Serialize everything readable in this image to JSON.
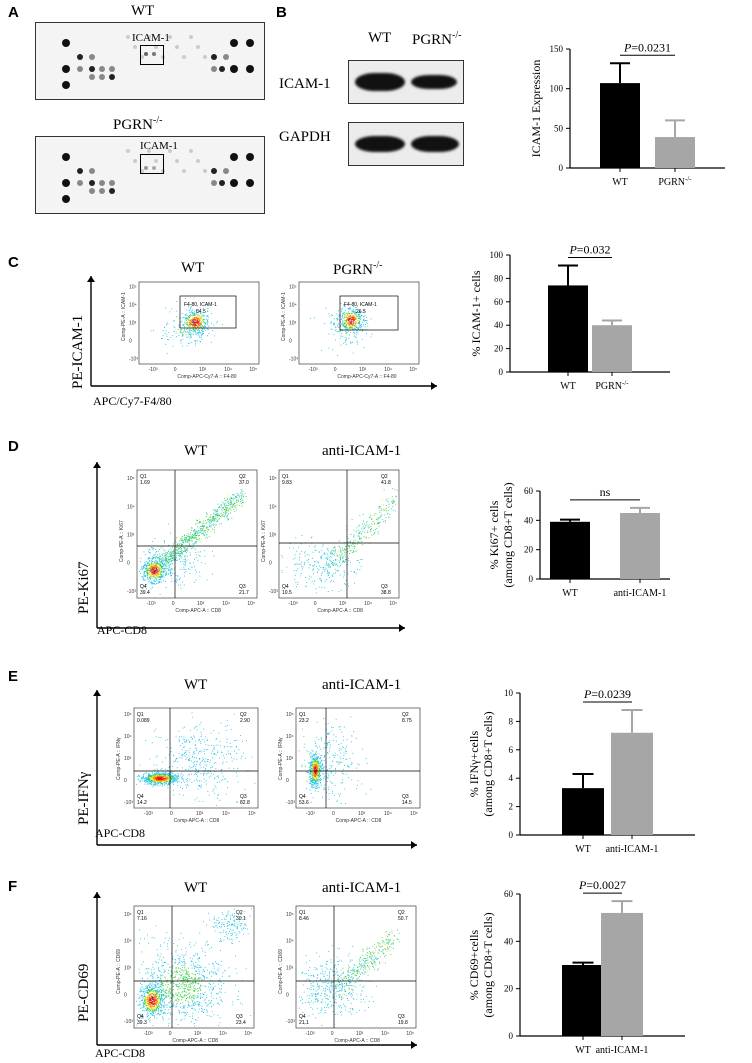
{
  "panels": {
    "A": {
      "letter": "A",
      "top_label": "WT",
      "bottom_label": "PGRN-/-",
      "box_label": "ICAM-1"
    },
    "B": {
      "letter": "B",
      "lane_labels": [
        "WT",
        "PGRN-/-"
      ],
      "row_labels": [
        "ICAM-1",
        "GAPDH"
      ]
    },
    "C": {
      "letter": "C",
      "plot_titles": [
        "WT",
        "PGRN-/-"
      ],
      "y_axis": "PE-ICAM-1",
      "x_axis": "APC/Cy7-F4/80",
      "gate_labels": [
        "F4-80, ICAM-1",
        "F4-80, ICAM-1"
      ],
      "gate_values": [
        "84.5",
        "26.5"
      ],
      "plot_xlabel": "Comp-APC-Cy7-A :: F4-80",
      "plot_ylabel": "Comp-PE-A :: ICAM-1"
    },
    "D": {
      "letter": "D",
      "plot_titles": [
        "WT",
        "anti-ICAM-1"
      ],
      "y_axis": "PE-Ki67",
      "x_axis": "APC-CD8",
      "quadrants": [
        [
          "Q1",
          "1.69",
          "Q2",
          "37.0",
          "Q4",
          "39.4",
          "Q3",
          "21.7"
        ],
        [
          "Q1",
          "9.83",
          "Q2",
          "41.8",
          "Q4",
          "10.5",
          "Q3",
          "38.8"
        ]
      ],
      "plot_xlabel": "Comp-APC-A :: CD8",
      "plot_ylabel": "Comp-PE-A :: Ki67"
    },
    "E": {
      "letter": "E",
      "plot_titles": [
        "WT",
        "anti-ICAM-1"
      ],
      "y_axis": "PE-IFNγ",
      "x_axis": "APC-CD8",
      "quadrants": [
        [
          "Q1",
          "0.089",
          "Q2",
          "2.90",
          "Q4",
          "14.2",
          "Q3",
          "82.8"
        ],
        [
          "Q1",
          "23.2",
          "Q2",
          "8.75",
          "Q4",
          "53.6",
          "Q3",
          "14.5"
        ]
      ],
      "plot_xlabel": "Comp-APC-A :: CD8",
      "plot_ylabel": "Comp-PE-A :: IFNγ"
    },
    "F": {
      "letter": "F",
      "plot_titles": [
        "WT",
        "anti-ICAM-1"
      ],
      "y_axis": "PE-CD69",
      "x_axis": "APC-CD8",
      "quadrants": [
        [
          "Q1",
          "7.16",
          "Q2",
          "30.1",
          "Q4",
          "39.3",
          "Q3",
          "23.4"
        ],
        [
          "Q1",
          "8.46",
          "Q2",
          "50.7",
          "Q4",
          "21.1",
          "Q3",
          "19.8"
        ]
      ],
      "plot_xlabel": "Comp-APC-A :: CD8",
      "plot_ylabel": "Comp-PE-A :: CD69"
    }
  },
  "chart_data": [
    {
      "id": "B",
      "type": "bar",
      "categories": [
        "WT",
        "PGRN-/-"
      ],
      "values": [
        107,
        39
      ],
      "errors": [
        25,
        21
      ],
      "ylabel": "ICAM-1 Expression",
      "ylim": [
        0,
        150
      ],
      "yticks": [
        "0",
        "50",
        "100",
        "150"
      ],
      "annotation": "P=0.0231",
      "colors": [
        "#000000",
        "#a6a6a6"
      ]
    },
    {
      "id": "C",
      "type": "bar",
      "categories": [
        "WT",
        "PGRN-/-"
      ],
      "values": [
        74,
        40
      ],
      "errors": [
        17,
        4
      ],
      "ylabel": "% ICAM-1+ cells",
      "ylim": [
        0,
        100
      ],
      "yticks": [
        "0",
        "20",
        "40",
        "60",
        "80",
        "100"
      ],
      "annotation": "P=0.032",
      "colors": [
        "#000000",
        "#a6a6a6"
      ]
    },
    {
      "id": "D",
      "type": "bar",
      "categories": [
        "WT",
        "anti-ICAM-1"
      ],
      "values": [
        39,
        45
      ],
      "errors": [
        1.5,
        3.5
      ],
      "ylabel": "% Ki67+ cells",
      "ylabel2": "(among CD8+T cells)",
      "ylim": [
        0,
        60
      ],
      "yticks": [
        "0",
        "20",
        "40",
        "60"
      ],
      "annotation": "ns",
      "colors": [
        "#000000",
        "#a6a6a6"
      ]
    },
    {
      "id": "E",
      "type": "bar",
      "categories": [
        "WT",
        "anti-ICAM-1"
      ],
      "values": [
        3.3,
        7.2
      ],
      "errors": [
        1.0,
        1.6
      ],
      "ylabel": "% IFNγ+cells",
      "ylabel2": "(among CD8+T cells)",
      "ylim": [
        0,
        10
      ],
      "yticks": [
        "0",
        "2",
        "4",
        "6",
        "8",
        "10"
      ],
      "annotation": "P=0.0239",
      "colors": [
        "#000000",
        "#a6a6a6"
      ]
    },
    {
      "id": "F",
      "type": "bar",
      "categories": [
        "WT",
        "anti-ICAM-1"
      ],
      "values": [
        30,
        52
      ],
      "errors": [
        1,
        5
      ],
      "ylabel": "% CD69+cells",
      "ylabel2": "(among CD8+T cells)",
      "ylim": [
        0,
        60
      ],
      "yticks": [
        "0",
        "20",
        "40",
        "60"
      ],
      "annotation": "P=0.0027",
      "colors": [
        "#000000",
        "#a6a6a6"
      ]
    }
  ]
}
